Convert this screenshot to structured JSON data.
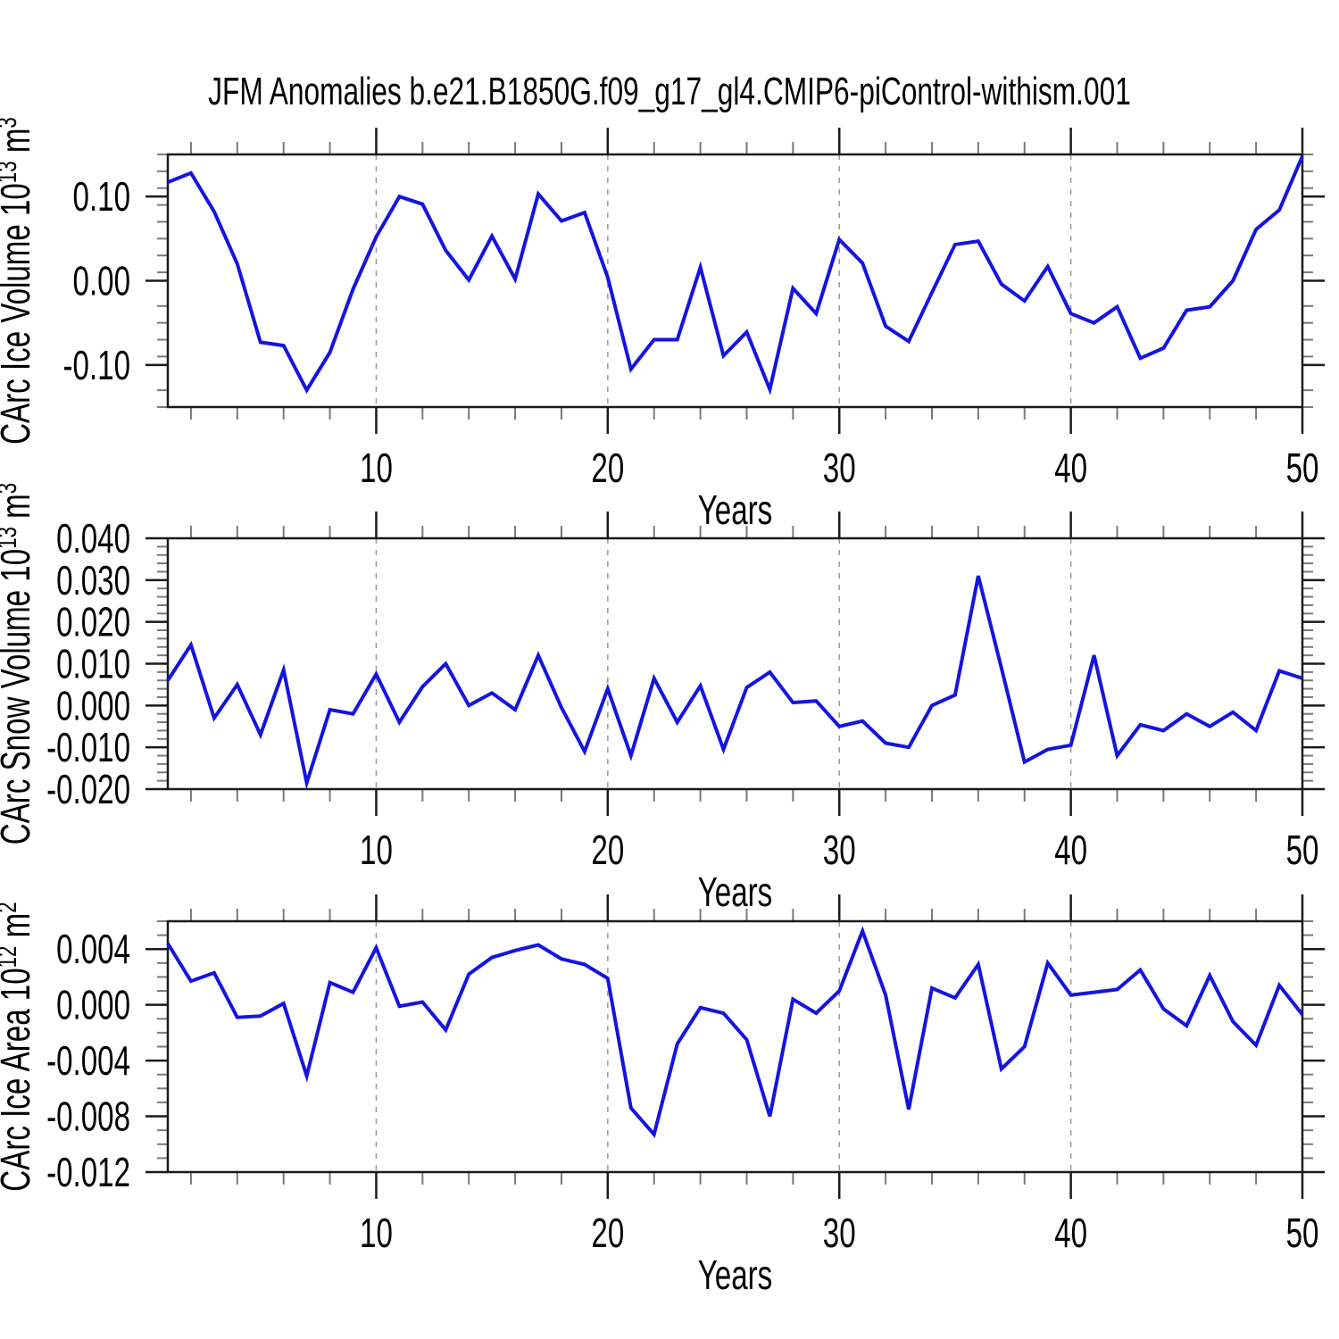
{
  "title": "JFM Anomalies b.e21.B1850G.f09_g17_gl4.CMIP6-piControl-withism.001",
  "colors": {
    "line": "#1414E0",
    "grid": "#999999",
    "frame": "#1a1a1a",
    "minor_tick": "#7a7a7a",
    "major_tick": "#1a1a1a",
    "text": "#000000"
  },
  "chart_data": [
    {
      "type": "line",
      "id": "carc-ice-volume",
      "ylabel": "CArc Ice Volume 10^13 m^3",
      "ylabel_segments": [
        {
          "t": "CArc Ice Volume 10"
        },
        {
          "t": "13",
          "sup": true
        },
        {
          "t": " m"
        },
        {
          "t": "3",
          "sup": true
        }
      ],
      "xlabel": "Years",
      "xlim": [
        1,
        50
      ],
      "ylim": [
        -0.15,
        0.15
      ],
      "x_ticks": [
        10,
        20,
        30,
        40,
        50
      ],
      "x_tick_labels": [
        "10",
        "20",
        "30",
        "40",
        "50"
      ],
      "x_minor_step": 2,
      "y_ticks": [
        0.1,
        0.0,
        -0.1
      ],
      "y_tick_labels": [
        "0.10",
        "0.00",
        "-0.10"
      ],
      "y_minor_step": 0.02,
      "grid_x": [
        10,
        20,
        30,
        40
      ],
      "grid_on": true,
      "legend": "none",
      "x": [
        1,
        2,
        3,
        4,
        5,
        6,
        7,
        8,
        9,
        10,
        11,
        12,
        13,
        14,
        15,
        16,
        17,
        18,
        19,
        20,
        21,
        22,
        23,
        24,
        25,
        26,
        27,
        28,
        29,
        30,
        31,
        32,
        33,
        34,
        35,
        36,
        37,
        38,
        39,
        40,
        41,
        42,
        43,
        44,
        45,
        46,
        47,
        48,
        49,
        50
      ],
      "values": [
        0.117,
        0.128,
        0.082,
        0.02,
        -0.073,
        -0.077,
        -0.13,
        -0.085,
        -0.01,
        0.052,
        0.1,
        0.091,
        0.036,
        0.001,
        0.053,
        0.002,
        0.103,
        0.071,
        0.081,
        0.004,
        -0.105,
        -0.07,
        -0.07,
        0.016,
        -0.089,
        -0.061,
        -0.129,
        -0.009,
        -0.039,
        0.049,
        0.021,
        -0.054,
        -0.072,
        -0.014,
        0.043,
        0.047,
        -0.004,
        -0.024,
        0.017,
        -0.039,
        -0.05,
        -0.031,
        -0.092,
        -0.08,
        -0.035,
        -0.031,
        0.0,
        0.061,
        0.084,
        0.148
      ]
    },
    {
      "type": "line",
      "id": "carc-snow-volume",
      "ylabel": "CArc Snow Volume 10^13 m^3",
      "ylabel_segments": [
        {
          "t": "CArc Snow Volume 10"
        },
        {
          "t": "13",
          "sup": true
        },
        {
          "t": " m"
        },
        {
          "t": "3",
          "sup": true
        }
      ],
      "xlabel": "Years",
      "xlim": [
        1,
        50
      ],
      "ylim": [
        -0.02,
        0.04
      ],
      "x_ticks": [
        10,
        20,
        30,
        40,
        50
      ],
      "x_tick_labels": [
        "10",
        "20",
        "30",
        "40",
        "50"
      ],
      "x_minor_step": 2,
      "y_ticks": [
        0.04,
        0.03,
        0.02,
        0.01,
        0.0,
        -0.01,
        -0.02
      ],
      "y_tick_labels": [
        "0.040",
        "0.030",
        "0.020",
        "0.010",
        "0.000",
        "-0.010",
        "-0.020"
      ],
      "y_minor_step": 0.002,
      "grid_x": [
        10,
        20,
        30,
        40
      ],
      "grid_on": true,
      "legend": "none",
      "x": [
        1,
        2,
        3,
        4,
        5,
        6,
        7,
        8,
        9,
        10,
        11,
        12,
        13,
        14,
        15,
        16,
        17,
        18,
        19,
        20,
        21,
        22,
        23,
        24,
        25,
        26,
        27,
        28,
        29,
        30,
        31,
        32,
        33,
        34,
        35,
        36,
        37,
        38,
        39,
        40,
        41,
        42,
        43,
        44,
        45,
        46,
        47,
        48,
        49,
        50
      ],
      "values": [
        0.006,
        0.0145,
        -0.003,
        0.005,
        -0.007,
        0.0085,
        -0.0185,
        -0.001,
        -0.002,
        0.0075,
        -0.004,
        0.0045,
        0.01,
        0.0,
        0.003,
        -0.001,
        0.012,
        -0.0005,
        -0.011,
        0.004,
        -0.012,
        0.0065,
        -0.004,
        0.0047,
        -0.0105,
        0.0043,
        0.008,
        0.0007,
        0.0011,
        -0.005,
        -0.0037,
        -0.009,
        -0.01,
        0.0,
        0.0025,
        0.031,
        0.009,
        -0.0135,
        -0.0105,
        -0.0095,
        0.012,
        -0.012,
        -0.0046,
        -0.006,
        -0.002,
        -0.005,
        -0.0016,
        -0.006,
        0.0083,
        0.0065
      ]
    },
    {
      "type": "line",
      "id": "carc-ice-area",
      "ylabel": "CArc Ice Area 10^12 m^2",
      "ylabel_segments": [
        {
          "t": "CArc Ice Area 10"
        },
        {
          "t": "12",
          "sup": true
        },
        {
          "t": " m"
        },
        {
          "t": "2",
          "sup": true
        }
      ],
      "xlabel": "Years",
      "xlim": [
        1,
        50
      ],
      "ylim": [
        -0.012,
        0.006
      ],
      "x_ticks": [
        10,
        20,
        30,
        40,
        50
      ],
      "x_tick_labels": [
        "10",
        "20",
        "30",
        "40",
        "50"
      ],
      "x_minor_step": 2,
      "y_ticks": [
        0.004,
        0.0,
        -0.004,
        -0.008,
        -0.012
      ],
      "y_tick_labels": [
        "0.004",
        "0.000",
        "-0.004",
        "-0.008",
        "-0.012"
      ],
      "y_minor_step": 0.001,
      "grid_x": [
        10,
        20,
        30,
        40
      ],
      "grid_on": true,
      "legend": "none",
      "x": [
        1,
        2,
        3,
        4,
        5,
        6,
        7,
        8,
        9,
        10,
        11,
        12,
        13,
        14,
        15,
        16,
        17,
        18,
        19,
        20,
        21,
        22,
        23,
        24,
        25,
        26,
        27,
        28,
        29,
        30,
        31,
        32,
        33,
        34,
        35,
        36,
        37,
        38,
        39,
        40,
        41,
        42,
        43,
        44,
        45,
        46,
        47,
        48,
        49,
        50
      ],
      "values": [
        0.0044,
        0.0017,
        0.0023,
        -0.0009,
        -0.0008,
        0.0001,
        -0.0051,
        0.0016,
        0.0009,
        0.0041,
        -0.0001,
        0.0002,
        -0.0018,
        0.0022,
        0.0034,
        0.0039,
        0.0043,
        0.0033,
        0.0029,
        0.0019,
        -0.0074,
        -0.0093,
        -0.0028,
        -0.0002,
        -0.0006,
        -0.0025,
        -0.008,
        0.0004,
        -0.0006,
        0.001,
        0.0053,
        0.0007,
        -0.0075,
        0.0012,
        0.0005,
        0.0029,
        -0.0046,
        -0.003,
        0.003,
        0.0007,
        0.0009,
        0.0011,
        0.0025,
        -0.0003,
        -0.0015,
        0.0021,
        -0.0012,
        -0.0029,
        0.0014,
        -0.0007
      ]
    }
  ]
}
